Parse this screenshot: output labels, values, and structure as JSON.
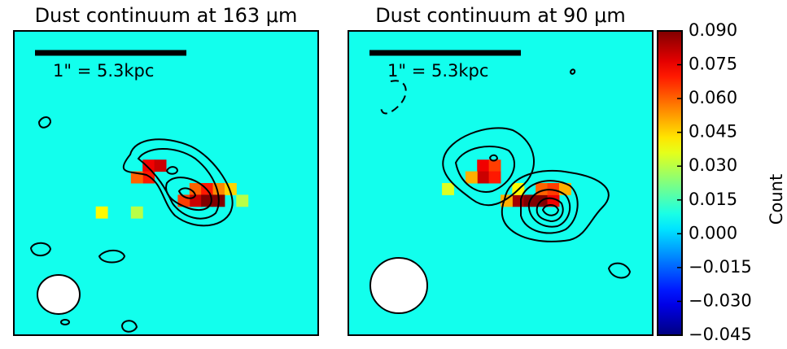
{
  "chart_data": [
    {
      "type": "heatmap",
      "title": "Dust continuum at 163 μm",
      "scalebar_label": "1\" = 5.3kpc",
      "pixels": [
        [
          11,
          11,
          0.075
        ],
        [
          12,
          11,
          0.08
        ],
        [
          11,
          12,
          0.07
        ],
        [
          10,
          12,
          0.06
        ],
        [
          15,
          13,
          0.06
        ],
        [
          16,
          13,
          0.07
        ],
        [
          17,
          13,
          0.055
        ],
        [
          18,
          13,
          0.045
        ],
        [
          15,
          14,
          0.08
        ],
        [
          16,
          14,
          0.09
        ],
        [
          17,
          14,
          0.09
        ],
        [
          14,
          14,
          0.065
        ],
        [
          7,
          15,
          0.04
        ],
        [
          19,
          14,
          0.03
        ],
        [
          10,
          15,
          0.03
        ]
      ]
    },
    {
      "type": "heatmap",
      "title": "Dust continuum at 90 μm",
      "scalebar_label": "1\" = 5.3kpc",
      "pixels": [
        [
          11,
          11,
          0.075
        ],
        [
          12,
          11,
          0.065
        ],
        [
          11,
          12,
          0.08
        ],
        [
          12,
          12,
          0.07
        ],
        [
          10,
          12,
          0.05
        ],
        [
          14,
          14,
          0.085
        ],
        [
          15,
          14,
          0.09
        ],
        [
          16,
          14,
          0.09
        ],
        [
          17,
          14,
          0.075
        ],
        [
          16,
          13,
          0.06
        ],
        [
          17,
          13,
          0.065
        ],
        [
          18,
          13,
          0.05
        ],
        [
          13,
          14,
          0.05
        ],
        [
          14,
          13,
          0.04
        ],
        [
          8,
          13,
          0.035
        ]
      ]
    },
    {
      "type": "colorbar",
      "label": "Count",
      "ylim": [
        -0.045,
        0.09
      ],
      "yticks": [
        {
          "value": 0.09,
          "label": "0.090"
        },
        {
          "value": 0.075,
          "label": "0.075"
        },
        {
          "value": 0.06,
          "label": "0.060"
        },
        {
          "value": 0.045,
          "label": "0.045"
        },
        {
          "value": 0.03,
          "label": "0.030"
        },
        {
          "value": 0.015,
          "label": "0.015"
        },
        {
          "value": 0,
          "label": "0.000"
        },
        {
          "value": -0.015,
          "label": "−0.015"
        },
        {
          "value": -0.03,
          "label": "−0.030"
        },
        {
          "value": -0.045,
          "label": "−0.045"
        }
      ]
    }
  ]
}
